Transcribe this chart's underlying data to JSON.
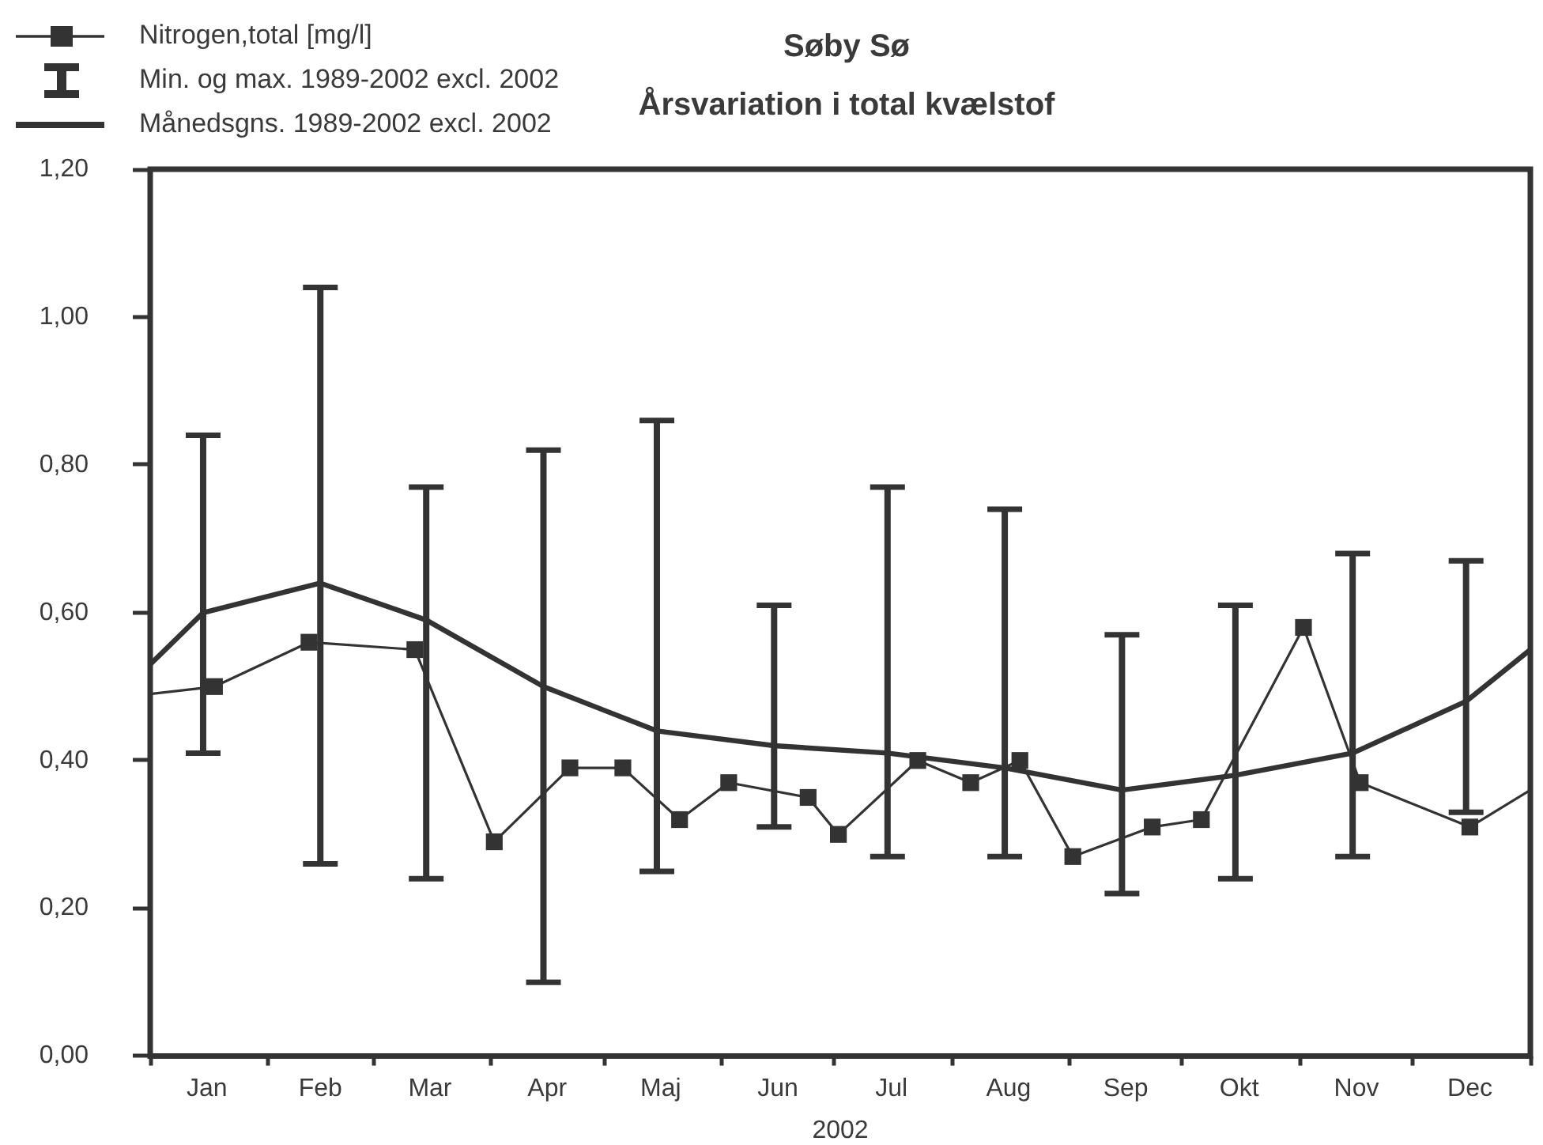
{
  "chart_data": {
    "type": "line",
    "title": "Søby Sø",
    "subtitle": "Årsvariation i total kvælstof",
    "xlabel": "2002",
    "legend": "top left",
    "annotations": [
      "Min. og max. 1989-2002 excl. 2002"
    ],
    "xlim": [
      "2002-01-01",
      "2003-01-01"
    ],
    "xticks": [
      {
        "value": "2002-01-01",
        "label": null
      },
      {
        "value": "2002-01-16",
        "label": "Jan"
      },
      {
        "value": "2002-02-01",
        "label": null
      },
      {
        "value": "2002-02-15",
        "label": "Feb"
      },
      {
        "value": "2002-03-01",
        "label": null
      },
      {
        "value": "2002-03-16",
        "label": "Mar"
      },
      {
        "value": "2002-04-01",
        "label": null
      },
      {
        "value": "2002-04-16",
        "label": "Apr"
      },
      {
        "value": "2002-05-01",
        "label": null
      },
      {
        "value": "2002-05-16",
        "label": "Maj"
      },
      {
        "value": "2002-06-01",
        "label": null
      },
      {
        "value": "2002-06-16",
        "label": "Jun"
      },
      {
        "value": "2002-07-01",
        "label": null
      },
      {
        "value": "2002-07-16",
        "label": "Jul"
      },
      {
        "value": "2002-08-01",
        "label": null
      },
      {
        "value": "2002-08-16",
        "label": "Aug"
      },
      {
        "value": "2002-09-01",
        "label": null
      },
      {
        "value": "2002-09-16",
        "label": "Sep"
      },
      {
        "value": "2002-10-01",
        "label": null
      },
      {
        "value": "2002-10-16",
        "label": "Okt"
      },
      {
        "value": "2002-11-01",
        "label": null
      },
      {
        "value": "2002-11-16",
        "label": "Nov"
      },
      {
        "value": "2002-12-01",
        "label": null
      },
      {
        "value": "2002-12-16",
        "label": "Dec"
      },
      {
        "value": "2003-01-01",
        "label": null
      }
    ],
    "ylim": [
      0,
      1.2
    ],
    "yticks": [
      {
        "value": 0,
        "label": "0,00"
      },
      {
        "value": 0.2,
        "label": "0,20"
      },
      {
        "value": 0.4,
        "label": "0,40"
      },
      {
        "value": 0.6,
        "label": "0,60"
      },
      {
        "value": 0.8,
        "label": "0,80"
      },
      {
        "value": 1.0,
        "label": "1,00"
      },
      {
        "value": 1.2,
        "label": "1,20"
      }
    ],
    "series": [
      {
        "name": "Nitrogen,total [mg/l]",
        "color": "#333333",
        "marker": "square",
        "x": [
          "2002-01-01",
          "2002-01-18",
          "2002-02-12",
          "2002-03-12",
          "2002-04-02",
          "2002-04-22",
          "2002-05-06",
          "2002-05-21",
          "2002-06-03",
          "2002-06-24",
          "2002-07-02",
          "2002-07-23",
          "2002-08-06",
          "2002-08-19",
          "2002-09-02",
          "2002-09-23",
          "2002-10-06",
          "2002-11-02",
          "2002-11-17",
          "2002-12-16",
          "2003-01-01"
        ],
        "values": [
          0.49,
          0.5,
          0.56,
          0.55,
          0.29,
          0.39,
          0.39,
          0.32,
          0.37,
          0.35,
          0.3,
          0.4,
          0.37,
          0.4,
          0.27,
          0.31,
          0.32,
          0.58,
          0.37,
          0.31,
          0.36
        ]
      },
      {
        "name": "Månedsgns. 1989-2002 excl. 2002",
        "color": "#333333",
        "marker": "none",
        "x": [
          "2002-01-01",
          "2002-01-15",
          "2002-02-15",
          "2002-03-15",
          "2002-04-15",
          "2002-05-15",
          "2002-06-15",
          "2002-07-15",
          "2002-08-15",
          "2002-09-15",
          "2002-10-15",
          "2002-11-15",
          "2002-12-15",
          "2003-01-01"
        ],
        "values": [
          0.53,
          0.6,
          0.64,
          0.59,
          0.5,
          0.44,
          0.42,
          0.41,
          0.39,
          0.36,
          0.38,
          0.41,
          0.48,
          0.55
        ],
        "errors": [
          null,
          [
            0.41,
            0.84
          ],
          [
            0.26,
            1.04
          ],
          [
            0.24,
            0.77
          ],
          [
            0.1,
            0.82
          ],
          [
            0.25,
            0.86
          ],
          [
            0.31,
            0.61
          ],
          [
            0.27,
            0.77
          ],
          [
            0.27,
            0.74
          ],
          [
            0.22,
            0.57
          ],
          [
            0.24,
            0.61
          ],
          [
            0.27,
            0.68
          ],
          [
            0.33,
            0.67
          ],
          null
        ]
      }
    ]
  }
}
